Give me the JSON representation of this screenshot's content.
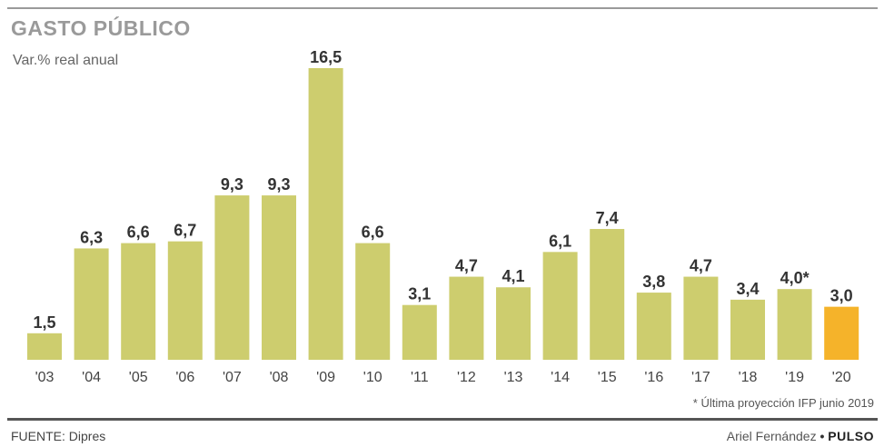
{
  "header": {
    "title": "GASTO PÚBLICO",
    "subtitle": "Var.% real anual"
  },
  "footer": {
    "footnote": "* Última proyección IFP junio 2019",
    "source": "FUENTE: Dipres",
    "author": "Ariel Fernández",
    "bullet": "•",
    "brand": "PULSO"
  },
  "colors": {
    "bar": "#cdcd6e",
    "highlight": "#f5b32a",
    "rule": "#9a9a9a",
    "title": "#9a9a9a",
    "text": "#333333"
  },
  "chart_data": {
    "type": "bar",
    "categories": [
      "'03",
      "'04",
      "'05",
      "'06",
      "'07",
      "'08",
      "'09",
      "'10",
      "'11",
      "'12",
      "'13",
      "'14",
      "'15",
      "'16",
      "'17",
      "'18",
      "'19",
      "'20"
    ],
    "values": [
      1.5,
      6.3,
      6.6,
      6.7,
      9.3,
      9.3,
      16.5,
      6.6,
      3.1,
      4.7,
      4.1,
      6.1,
      7.4,
      3.8,
      4.7,
      3.4,
      4.0,
      3.0
    ],
    "value_labels": [
      "1,5",
      "6,3",
      "6,6",
      "6,7",
      "9,3",
      "9,3",
      "16,5",
      "6,6",
      "3,1",
      "4,7",
      "4,1",
      "6,1",
      "7,4",
      "3,8",
      "4,7",
      "3,4",
      "4,0*",
      "3,0"
    ],
    "highlight_index": 17,
    "ylim": [
      0,
      16.5
    ],
    "grid": false,
    "legend": "none"
  }
}
